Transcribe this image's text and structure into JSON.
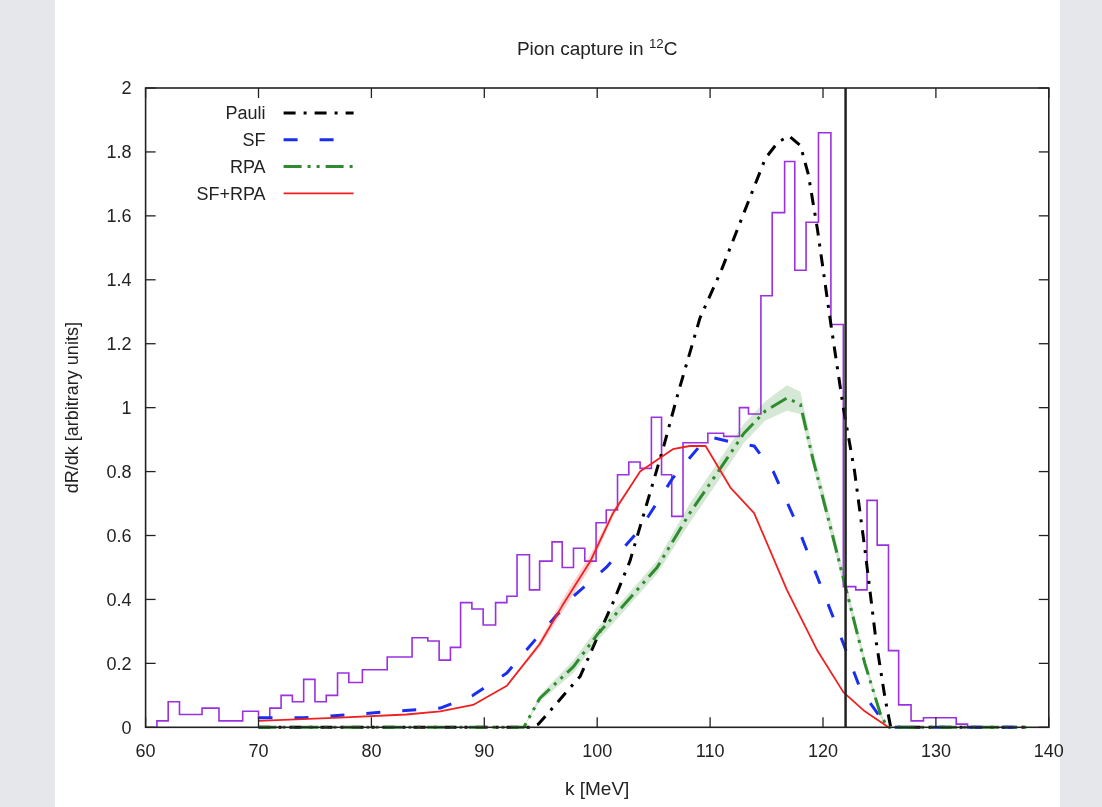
{
  "chart_data": {
    "type": "line",
    "title": "Pion capture in $^{12}$C",
    "xlabel": "k [MeV]",
    "ylabel": "dR/dk [arbitrary units]",
    "xlim": [
      60,
      140
    ],
    "xticks": [
      60,
      70,
      80,
      90,
      100,
      110,
      120,
      130,
      140
    ],
    "ylim": [
      0,
      2
    ],
    "yticks": [
      0,
      0.2,
      0.4,
      0.6,
      0.8,
      1,
      1.2,
      1.4,
      1.6,
      1.8,
      2
    ],
    "grid": false,
    "legend": "top left",
    "marker": "none",
    "ref_lines": [
      {
        "axis": "x",
        "value": 122,
        "color": "#222222",
        "line_style": "solid"
      }
    ],
    "series": [
      {
        "type": "histogram",
        "color": "#9b30e0",
        "bins": [
          61,
          62,
          63,
          65,
          66.5,
          68.6,
          70,
          71,
          72,
          73,
          74,
          75,
          76,
          77,
          78,
          79.2,
          81.4,
          83.6,
          85,
          86,
          87,
          87.9,
          88.9,
          89.9,
          91,
          92,
          92.9,
          94,
          94.9,
          96,
          96.9,
          97.9,
          98.9,
          99.9,
          100.8,
          101.8,
          102.8,
          103.8,
          104.8,
          105.7,
          106.6,
          107.6,
          109.8,
          111.2,
          112.6,
          113.4,
          114.5,
          115.5,
          116.6,
          117.5,
          118.5,
          119.6,
          120.7,
          121.8,
          122.9,
          123.9,
          124.8,
          125.8,
          126.7,
          127.8,
          128.9,
          130.5,
          131.8,
          132.8
        ],
        "values": [
          0.02,
          0.08,
          0.04,
          0.06,
          0.02,
          0.05,
          0.03,
          0.06,
          0.1,
          0.08,
          0.15,
          0.08,
          0.1,
          0.17,
          0.14,
          0.18,
          0.22,
          0.28,
          0.27,
          0.21,
          0.25,
          0.39,
          0.37,
          0.32,
          0.39,
          0.41,
          0.54,
          0.43,
          0.52,
          0.58,
          0.5,
          0.56,
          0.52,
          0.64,
          0.68,
          0.79,
          0.83,
          0.81,
          0.97,
          0.79,
          0.66,
          0.89,
          0.92,
          0.91,
          1.0,
          0.98,
          1.35,
          1.61,
          1.77,
          1.43,
          1.58,
          1.86,
          1.26,
          0.44,
          0.43,
          0.71,
          0.57,
          0.24,
          0.07,
          0.02,
          0.03,
          0.03,
          0.01
        ]
      },
      {
        "name": "Pauli",
        "color": "#000000",
        "line_style": "dashed",
        "x": [
          70,
          94,
          94.8,
          98.5,
          100,
          101.4,
          102.9,
          104.4,
          105.9,
          107.2,
          109.1,
          111,
          113,
          114.9,
          116,
          117,
          118,
          118.7,
          119.5,
          120.7,
          121.8,
          122.8,
          123.7,
          124.7,
          125.5,
          126,
          138
        ],
        "values": [
          0,
          0,
          0.01,
          0.16,
          0.28,
          0.39,
          0.52,
          0.7,
          0.88,
          1.05,
          1.28,
          1.43,
          1.61,
          1.78,
          1.83,
          1.85,
          1.82,
          1.73,
          1.56,
          1.26,
          1.0,
          0.8,
          0.56,
          0.27,
          0.09,
          0,
          0
        ]
      },
      {
        "name": "SF",
        "color": "#1a2ef0",
        "line_style": "dashed",
        "x": [
          70,
          74,
          78.4,
          81.9,
          86.1,
          89,
          92,
          94.9,
          97.9,
          100.8,
          103.8,
          106.7,
          109.8,
          112.2,
          113.9,
          115.6,
          117.5,
          119.5,
          121.4,
          123.3,
          125.3,
          126,
          138
        ],
        "values": [
          0.03,
          0.03,
          0.04,
          0.05,
          0.06,
          0.1,
          0.17,
          0.29,
          0.41,
          0.5,
          0.62,
          0.78,
          0.91,
          0.89,
          0.88,
          0.8,
          0.65,
          0.47,
          0.3,
          0.12,
          0.02,
          0,
          0
        ]
      },
      {
        "name": "RPA",
        "color": "#2e8b2e",
        "line_style": "dashed",
        "x": [
          70,
          93.5,
          94.9,
          97.9,
          100,
          102.3,
          105.3,
          108.2,
          111.1,
          113,
          114.9,
          116.8,
          118,
          119.1,
          120.7,
          122.2,
          123.7,
          125.1,
          125.7,
          138
        ],
        "values": [
          0,
          0,
          0.09,
          0.19,
          0.29,
          0.38,
          0.5,
          0.67,
          0.82,
          0.92,
          0.99,
          1.03,
          1.01,
          0.84,
          0.62,
          0.41,
          0.2,
          0.04,
          0,
          0
        ],
        "lower": [
          0,
          0,
          0.08,
          0.17,
          0.27,
          0.36,
          0.48,
          0.64,
          0.79,
          0.89,
          0.96,
          0.99,
          0.98,
          0.82,
          0.6,
          0.39,
          0.19,
          0.03,
          0,
          0
        ],
        "upper": [
          0,
          0,
          0.1,
          0.21,
          0.31,
          0.4,
          0.52,
          0.7,
          0.85,
          0.95,
          1.02,
          1.07,
          1.05,
          0.87,
          0.65,
          0.43,
          0.22,
          0.05,
          0,
          0
        ]
      },
      {
        "name": "SF+RPA",
        "color": "#f02020",
        "line_style": "solid",
        "x": [
          70,
          77.2,
          83.1,
          86.1,
          89,
          92,
          94.9,
          96.9,
          99.4,
          101.4,
          103.8,
          106.7,
          108.2,
          109.6,
          111.8,
          113.9,
          116.8,
          119.5,
          121.8,
          123.7,
          125.8
        ],
        "values": [
          0.02,
          0.03,
          0.04,
          0.05,
          0.07,
          0.13,
          0.26,
          0.38,
          0.52,
          0.67,
          0.8,
          0.87,
          0.88,
          0.88,
          0.75,
          0.67,
          0.43,
          0.24,
          0.11,
          0.05,
          0
        ],
        "lower": [
          0.02,
          0.03,
          0.04,
          0.05,
          0.07,
          0.13,
          0.25,
          0.36,
          0.5,
          0.66,
          0.8,
          0.87,
          0.88,
          0.88,
          0.75,
          0.67,
          0.43,
          0.24,
          0.11,
          0.05,
          0
        ],
        "upper": [
          0.02,
          0.03,
          0.04,
          0.05,
          0.07,
          0.13,
          0.27,
          0.4,
          0.54,
          0.68,
          0.8,
          0.87,
          0.88,
          0.88,
          0.75,
          0.67,
          0.43,
          0.24,
          0.11,
          0.05,
          0
        ]
      }
    ]
  }
}
